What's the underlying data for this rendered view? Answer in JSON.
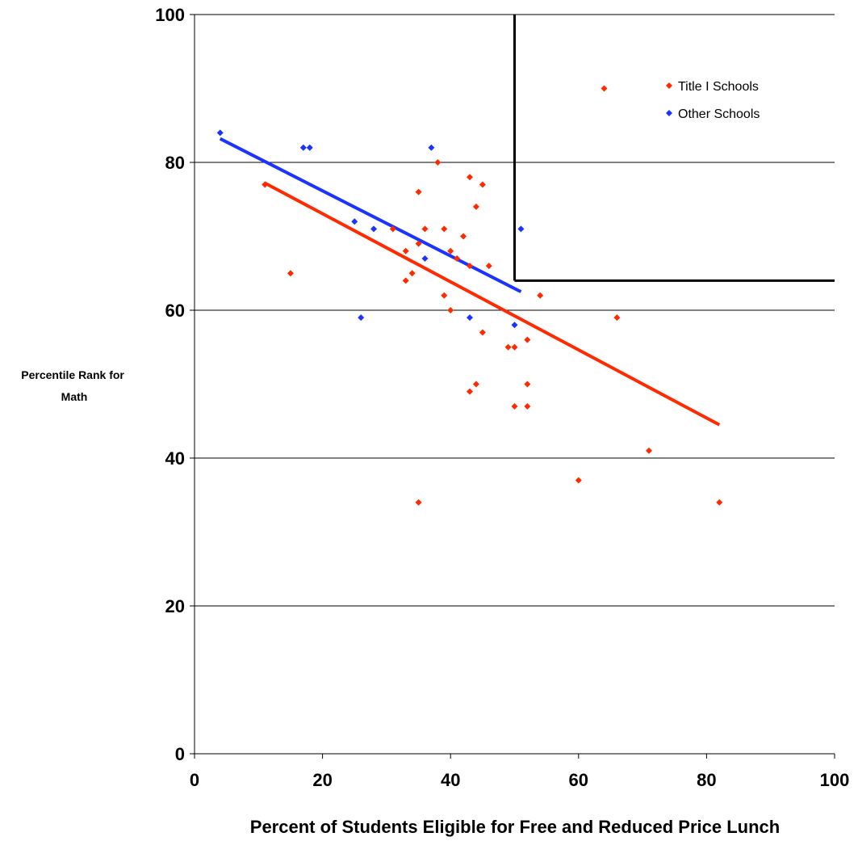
{
  "chart_data": {
    "type": "scatter",
    "title": "",
    "xlabel": "Percent of Students Eligible for Free and Reduced Price Lunch",
    "ylabel_lines": [
      "Percentile Rank for",
      "Math"
    ],
    "xlim": [
      0,
      100
    ],
    "ylim": [
      0,
      100
    ],
    "xticks": [
      0,
      20,
      40,
      60,
      80,
      100
    ],
    "yticks": [
      0,
      20,
      40,
      60,
      80,
      100
    ],
    "grid": "horizontal",
    "legend_position": "top-right",
    "series": [
      {
        "name": "Title I Schools",
        "color": "#ff2a00",
        "points": [
          [
            11,
            77
          ],
          [
            15,
            65
          ],
          [
            31,
            71
          ],
          [
            33,
            68
          ],
          [
            33,
            64
          ],
          [
            34,
            65
          ],
          [
            35,
            76
          ],
          [
            35,
            69
          ],
          [
            35,
            34
          ],
          [
            36,
            71
          ],
          [
            38,
            80
          ],
          [
            39,
            71
          ],
          [
            39,
            62
          ],
          [
            40,
            68
          ],
          [
            40,
            60
          ],
          [
            41,
            67
          ],
          [
            42,
            70
          ],
          [
            43,
            78
          ],
          [
            43,
            66
          ],
          [
            43,
            49
          ],
          [
            44,
            74
          ],
          [
            44,
            50
          ],
          [
            45,
            77
          ],
          [
            45,
            57
          ],
          [
            46,
            66
          ],
          [
            49,
            55
          ],
          [
            50,
            55
          ],
          [
            50,
            47
          ],
          [
            52,
            56
          ],
          [
            52,
            50
          ],
          [
            52,
            47
          ],
          [
            54,
            62
          ],
          [
            60,
            37
          ],
          [
            64,
            90
          ],
          [
            66,
            59
          ],
          [
            71,
            41
          ],
          [
            82,
            34
          ]
        ],
        "trendline": [
          [
            11,
            77.2
          ],
          [
            82,
            44.5
          ]
        ]
      },
      {
        "name": "Other Schools",
        "color": "#1a33ff",
        "points": [
          [
            4,
            84
          ],
          [
            17,
            82
          ],
          [
            18,
            82
          ],
          [
            25,
            72
          ],
          [
            26,
            59
          ],
          [
            28,
            71
          ],
          [
            36,
            67
          ],
          [
            37,
            82
          ],
          [
            43,
            59
          ],
          [
            50,
            58
          ],
          [
            51,
            71
          ]
        ],
        "trendline": [
          [
            4,
            83.2
          ],
          [
            51,
            62.5
          ]
        ]
      }
    ],
    "reference_lines": [
      {
        "from": [
          50,
          100
        ],
        "to": [
          50,
          64
        ]
      },
      {
        "from": [
          50,
          64
        ],
        "to": [
          100,
          64
        ]
      }
    ]
  }
}
